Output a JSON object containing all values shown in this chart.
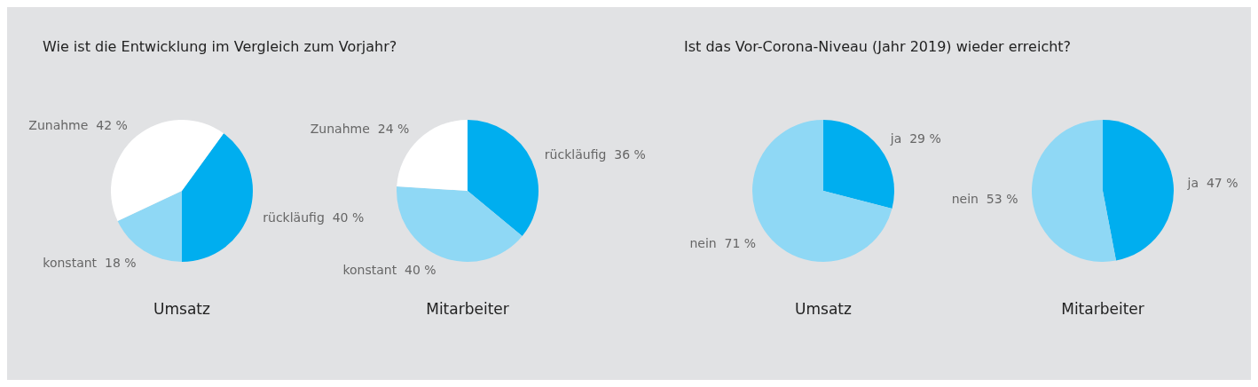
{
  "chart_data": [
    {
      "type": "pie",
      "title": "Wie ist die Entwicklung im Vergleich zum Vorjahr?",
      "xlabel": "Umsatz",
      "categories": [
        "rückläufig",
        "konstant",
        "Zunahme"
      ],
      "values": [
        40,
        18,
        42
      ],
      "value_labels": [
        "40 %",
        "18 %",
        "42 %"
      ],
      "colors": [
        "#00aeef",
        "#8fd8f5",
        "#ffffff"
      ]
    },
    {
      "type": "pie",
      "xlabel": "Mitarbeiter",
      "categories": [
        "rückläufig",
        "konstant",
        "Zunahme"
      ],
      "values": [
        36,
        40,
        24
      ],
      "value_labels": [
        "36 %",
        "40 %",
        "24 %"
      ],
      "colors": [
        "#00aeef",
        "#8fd8f5",
        "#ffffff"
      ]
    },
    {
      "type": "pie",
      "title": "Ist das Vor-Corona-Niveau (Jahr 2019) wieder erreicht?",
      "xlabel": "Umsatz",
      "categories": [
        "ja",
        "nein"
      ],
      "values": [
        29,
        71
      ],
      "value_labels": [
        "29 %",
        "71 %"
      ],
      "colors": [
        "#00aeef",
        "#8fd8f5"
      ]
    },
    {
      "type": "pie",
      "xlabel": "Mitarbeiter",
      "categories": [
        "ja",
        "nein"
      ],
      "values": [
        47,
        53
      ],
      "value_labels": [
        "47 %",
        "53 %"
      ],
      "colors": [
        "#00aeef",
        "#8fd8f5"
      ]
    }
  ]
}
